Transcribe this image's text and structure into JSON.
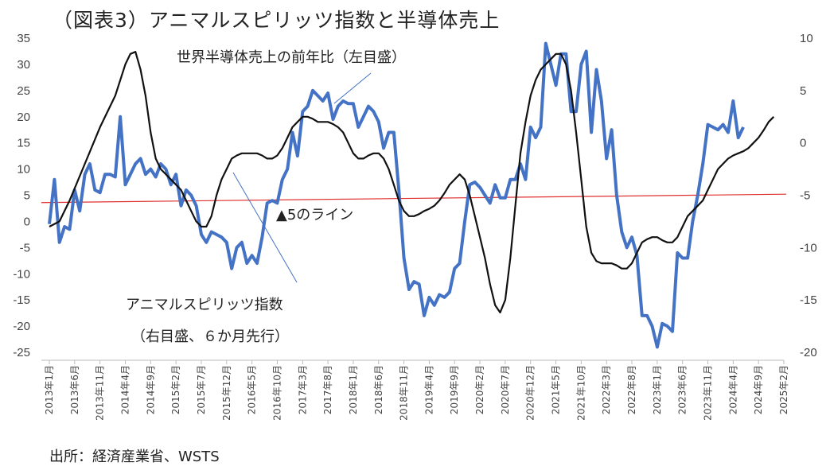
{
  "title": "（図表3）アニマルスピリッツ指数と半導体売上",
  "source": "出所：経済産業省、WSTS",
  "chart_data": {
    "type": "line",
    "title": "（図表3）アニマルスピリッツ指数と半導体売上",
    "left_axis": {
      "ylim": [
        -25,
        35
      ],
      "ticks": [
        "35",
        "30",
        "25",
        "20",
        "15",
        "10",
        "5",
        "0",
        "-5",
        "-10",
        "-15",
        "-20",
        "-25"
      ]
    },
    "right_axis": {
      "ylim": [
        -20,
        10
      ],
      "ticks": [
        "10",
        "5",
        "0",
        "-5",
        "-10",
        "-15",
        "-20"
      ]
    },
    "x_labels": [
      "2013年1月",
      "2013年6月",
      "2013年11月",
      "2014年4月",
      "2014年9月",
      "2015年2月",
      "2015年7月",
      "2015年12月",
      "2016年5月",
      "2016年10月",
      "2017年3月",
      "2017年8月",
      "2018年1月",
      "2018年6月",
      "2018年11月",
      "2019年4月",
      "2019年9月",
      "2020年2月",
      "2020年7月",
      "2020年12月",
      "2021年5月",
      "2021年10月",
      "2022年3月",
      "2022年8月",
      "2023年1月",
      "2023年6月",
      "2023年11月",
      "2024年4月",
      "2024年9月",
      "2025年2月"
    ],
    "annotations": {
      "semis": "世界半導体売上の前年比（左目盛）",
      "animal_line1": "アニマルスピリッツ指数",
      "animal_line2": "（右目盛、６か月先行）",
      "ref_line": "▲5のライン"
    },
    "reference_line": {
      "axis": "right",
      "value": -5,
      "color": "#e03030"
    },
    "series": [
      {
        "axis": "left",
        "color": "#4472c4",
        "values": [
          [
            0,
            -0.5
          ],
          [
            1,
            8
          ],
          [
            2,
            -4
          ],
          [
            3,
            -1
          ],
          [
            4,
            -1.5
          ],
          [
            5,
            6
          ],
          [
            6,
            2
          ],
          [
            7,
            9
          ],
          [
            8,
            11
          ],
          [
            9,
            6
          ],
          [
            10,
            5.5
          ],
          [
            11,
            9
          ],
          [
            12,
            9
          ],
          [
            13,
            8.5
          ],
          [
            14,
            20
          ],
          [
            15,
            7
          ],
          [
            16,
            9
          ],
          [
            17,
            11
          ],
          [
            18,
            12
          ],
          [
            19,
            9
          ],
          [
            20,
            10
          ],
          [
            21,
            8.5
          ],
          [
            22,
            11
          ],
          [
            23,
            10
          ],
          [
            24,
            7
          ],
          [
            25,
            9
          ],
          [
            26,
            3
          ],
          [
            27,
            6
          ],
          [
            28,
            5
          ],
          [
            29,
            3
          ],
          [
            30,
            -2.5
          ],
          [
            31,
            -4
          ],
          [
            32,
            -2
          ],
          [
            33,
            -2.5
          ],
          [
            34,
            -3
          ],
          [
            35,
            -4
          ],
          [
            36,
            -9
          ],
          [
            37,
            -5
          ],
          [
            38,
            -4
          ],
          [
            39,
            -8
          ],
          [
            40,
            -6.5
          ],
          [
            41,
            -8
          ],
          [
            42,
            -3
          ],
          [
            43,
            3.5
          ],
          [
            44,
            4
          ],
          [
            45,
            3.5
          ],
          [
            46,
            8
          ],
          [
            47,
            10
          ],
          [
            48,
            17
          ],
          [
            49,
            12.5
          ],
          [
            50,
            21
          ],
          [
            51,
            22
          ],
          [
            52,
            25
          ],
          [
            53,
            24
          ],
          [
            54,
            23
          ],
          [
            55,
            24.5
          ],
          [
            56,
            19.5
          ],
          [
            57,
            22
          ],
          [
            58,
            23
          ],
          [
            59,
            22.5
          ],
          [
            60,
            22.5
          ],
          [
            61,
            18
          ],
          [
            62,
            20
          ],
          [
            63,
            22
          ],
          [
            64,
            21
          ],
          [
            65,
            19
          ],
          [
            66,
            14
          ],
          [
            67,
            17
          ],
          [
            68,
            17
          ],
          [
            69,
            6
          ],
          [
            70,
            -7
          ],
          [
            71,
            -13
          ],
          [
            72,
            -11.5
          ],
          [
            73,
            -12
          ],
          [
            74,
            -18
          ],
          [
            75,
            -14.5
          ],
          [
            76,
            -16
          ],
          [
            77,
            -14
          ],
          [
            78,
            -14.5
          ],
          [
            79,
            -13.5
          ],
          [
            80,
            -9
          ],
          [
            81,
            -8
          ],
          [
            82,
            0
          ],
          [
            83,
            7
          ],
          [
            84,
            7.5
          ],
          [
            85,
            6.5
          ],
          [
            86,
            5
          ],
          [
            87,
            3.5
          ],
          [
            88,
            7
          ],
          [
            89,
            4.5
          ],
          [
            90,
            4.5
          ],
          [
            91,
            8
          ],
          [
            92,
            8
          ],
          [
            93,
            11
          ],
          [
            94,
            8
          ],
          [
            95,
            18
          ],
          [
            96,
            16
          ],
          [
            97,
            18
          ],
          [
            98,
            34
          ],
          [
            99,
            30
          ],
          [
            100,
            26
          ],
          [
            101,
            32
          ],
          [
            102,
            32
          ],
          [
            103,
            21
          ],
          [
            104,
            21
          ],
          [
            105,
            30
          ],
          [
            106,
            32.5
          ],
          [
            107,
            17
          ],
          [
            108,
            29
          ],
          [
            109,
            23
          ],
          [
            110,
            12
          ],
          [
            111,
            17.5
          ],
          [
            112,
            5
          ],
          [
            113,
            -2
          ],
          [
            114,
            -5
          ],
          [
            115,
            -3
          ],
          [
            116,
            -6.5
          ],
          [
            117,
            -18
          ],
          [
            118,
            -18
          ],
          [
            119,
            -20
          ],
          [
            120,
            -24
          ],
          [
            121,
            -19.5
          ],
          [
            122,
            -20
          ],
          [
            123,
            -21
          ],
          [
            124,
            -6
          ],
          [
            125,
            -7
          ],
          [
            126,
            -7
          ],
          [
            127,
            0
          ],
          [
            128,
            5
          ],
          [
            129,
            11
          ],
          [
            130,
            18.5
          ],
          [
            131,
            18
          ],
          [
            132,
            17.5
          ],
          [
            133,
            18.5
          ],
          [
            134,
            17
          ],
          [
            135,
            23
          ],
          [
            136,
            16
          ],
          [
            137,
            18
          ]
        ]
      },
      {
        "axis": "right",
        "color": "#111111",
        "values": [
          [
            0,
            -8
          ],
          [
            2,
            -7.5
          ],
          [
            4,
            -5.5
          ],
          [
            7,
            -2
          ],
          [
            10,
            1.5
          ],
          [
            13,
            4.5
          ],
          [
            15,
            7.5
          ],
          [
            16,
            8.5
          ],
          [
            17,
            8.7
          ],
          [
            18,
            7
          ],
          [
            19,
            4.5
          ],
          [
            20,
            1
          ],
          [
            21,
            -1.5
          ],
          [
            22,
            -2.5
          ],
          [
            24,
            -3.5
          ],
          [
            26,
            -4.5
          ],
          [
            27,
            -5.5
          ],
          [
            28,
            -6.5
          ],
          [
            29,
            -7.5
          ],
          [
            30,
            -8
          ],
          [
            31,
            -8
          ],
          [
            32,
            -7
          ],
          [
            33,
            -5
          ],
          [
            34,
            -3.5
          ],
          [
            35,
            -2.5
          ],
          [
            36,
            -1.5
          ],
          [
            37,
            -1.2
          ],
          [
            38,
            -1
          ],
          [
            39,
            -1
          ],
          [
            40,
            -1
          ],
          [
            41,
            -1
          ],
          [
            42,
            -1.2
          ],
          [
            43,
            -1.5
          ],
          [
            44,
            -1.5
          ],
          [
            45,
            -1.2
          ],
          [
            46,
            -0.5
          ],
          [
            47,
            0.5
          ],
          [
            48,
            1.5
          ],
          [
            49,
            2
          ],
          [
            50,
            2.5
          ],
          [
            51,
            2.5
          ],
          [
            52,
            2.3
          ],
          [
            53,
            2
          ],
          [
            54,
            2
          ],
          [
            55,
            2
          ],
          [
            56,
            1.8
          ],
          [
            57,
            1.5
          ],
          [
            58,
            1
          ],
          [
            59,
            0
          ],
          [
            60,
            -1
          ],
          [
            61,
            -1.5
          ],
          [
            62,
            -1.5
          ],
          [
            63,
            -1.2
          ],
          [
            64,
            -1
          ],
          [
            65,
            -1
          ],
          [
            66,
            -1.5
          ],
          [
            67,
            -2.5
          ],
          [
            68,
            -4
          ],
          [
            69,
            -5.5
          ],
          [
            70,
            -6.5
          ],
          [
            71,
            -7
          ],
          [
            72,
            -7
          ],
          [
            73,
            -6.8
          ],
          [
            74,
            -6.5
          ],
          [
            75,
            -6.3
          ],
          [
            76,
            -6
          ],
          [
            77,
            -5.5
          ],
          [
            78,
            -4.8
          ],
          [
            79,
            -4
          ],
          [
            80,
            -3.5
          ],
          [
            81,
            -3
          ],
          [
            82,
            -3.5
          ],
          [
            83,
            -5
          ],
          [
            84,
            -7
          ],
          [
            85,
            -9
          ],
          [
            86,
            -11
          ],
          [
            87,
            -13.5
          ],
          [
            88,
            -15.5
          ],
          [
            89,
            -16.2
          ],
          [
            90,
            -15
          ],
          [
            91,
            -11
          ],
          [
            92,
            -6
          ],
          [
            93,
            -1
          ],
          [
            94,
            2
          ],
          [
            95,
            4.5
          ],
          [
            96,
            6
          ],
          [
            97,
            7
          ],
          [
            98,
            7.5
          ],
          [
            99,
            8
          ],
          [
            100,
            8.5
          ],
          [
            101,
            8.5
          ],
          [
            102,
            7.5
          ],
          [
            103,
            5
          ],
          [
            104,
            1
          ],
          [
            105,
            -3.5
          ],
          [
            106,
            -8
          ],
          [
            107,
            -10.5
          ],
          [
            108,
            -11.3
          ],
          [
            109,
            -11.5
          ],
          [
            110,
            -11.5
          ],
          [
            111,
            -11.5
          ],
          [
            112,
            -11.7
          ],
          [
            113,
            -12
          ],
          [
            114,
            -12
          ],
          [
            115,
            -11.5
          ],
          [
            116,
            -10.5
          ],
          [
            117,
            -9.5
          ],
          [
            118,
            -9.2
          ],
          [
            119,
            -9
          ],
          [
            120,
            -9
          ],
          [
            121,
            -9.3
          ],
          [
            122,
            -9.5
          ],
          [
            123,
            -9.5
          ],
          [
            124,
            -9
          ],
          [
            125,
            -8
          ],
          [
            126,
            -7
          ],
          [
            127,
            -6.5
          ],
          [
            128,
            -6
          ],
          [
            129,
            -5.5
          ],
          [
            130,
            -4.5
          ],
          [
            131,
            -3.5
          ],
          [
            132,
            -2.5
          ],
          [
            133,
            -2
          ],
          [
            134,
            -1.5
          ],
          [
            135,
            -1.2
          ],
          [
            136,
            -1
          ],
          [
            137,
            -0.8
          ],
          [
            138,
            -0.5
          ],
          [
            139,
            0
          ],
          [
            140,
            0.5
          ],
          [
            141,
            1.2
          ],
          [
            142,
            2
          ],
          [
            143,
            2.5
          ]
        ]
      }
    ]
  }
}
